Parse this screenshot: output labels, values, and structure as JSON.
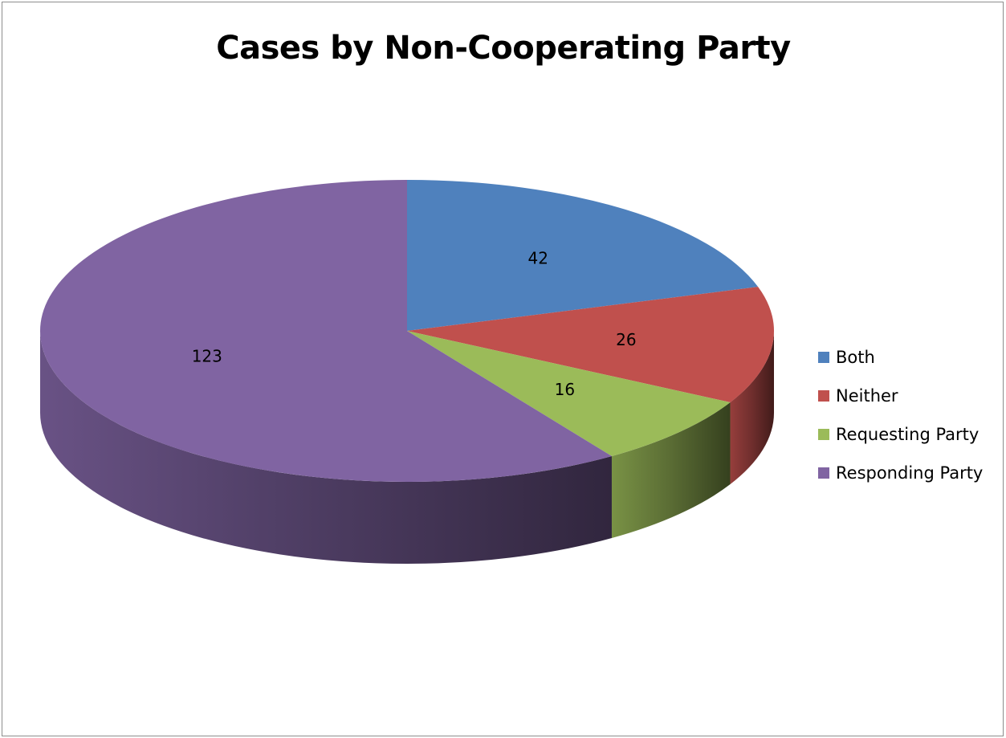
{
  "chart_data": {
    "type": "pie",
    "title": "Cases by Non-Cooperating Party",
    "categories": [
      "Both",
      "Neither",
      "Requesting Party",
      "Responding Party"
    ],
    "values": [
      42,
      26,
      16,
      123
    ],
    "colors": [
      "#4f81bd",
      "#c0504d",
      "#9bbb59",
      "#8064a2"
    ],
    "data_labels": [
      "42",
      "26",
      "16",
      "123"
    ],
    "legend_position": "right",
    "style": "3d-pie"
  }
}
